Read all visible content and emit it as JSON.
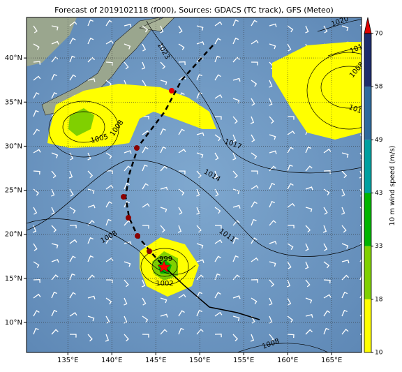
{
  "map": {
    "title": "Forecast of 2019102118 (f000), Sources: GDACS (TC track), GFS (Meteo)",
    "xlim": [
      130.3,
      168.4
    ],
    "ylim": [
      6.6,
      44.6
    ],
    "xticks": [
      {
        "value": 135,
        "label": "135°E"
      },
      {
        "value": 140,
        "label": "140°E"
      },
      {
        "value": 145,
        "label": "145°E"
      },
      {
        "value": 150,
        "label": "150°E"
      },
      {
        "value": 155,
        "label": "155°E"
      },
      {
        "value": 160,
        "label": "160°E"
      },
      {
        "value": 165,
        "label": "165°E"
      }
    ],
    "yticks": [
      {
        "value": 10,
        "label": "10°N"
      },
      {
        "value": 15,
        "label": "15°N"
      },
      {
        "value": 20,
        "label": "20°N"
      },
      {
        "value": 25,
        "label": "25°N"
      },
      {
        "value": 30,
        "label": "30°N"
      },
      {
        "value": 35,
        "label": "35°N"
      },
      {
        "value": 40,
        "label": "40°N"
      }
    ],
    "colorbar": {
      "label": "10 m wind speed (m/s)",
      "ticks": [
        10,
        18,
        33,
        43,
        49,
        58,
        70
      ],
      "colors": [
        "#ffff00",
        "#80d000",
        "#00b400",
        "#00a0a0",
        "#2f6a9c",
        "#1e2c6c"
      ],
      "extend_color": "#e00000"
    },
    "contour_labels": [
      "1023",
      "1020",
      "1014",
      "1008",
      "1011",
      "1017",
      "1014",
      "1011",
      "1008",
      "1005",
      "1008",
      "1002",
      "999",
      "1008"
    ]
  }
}
